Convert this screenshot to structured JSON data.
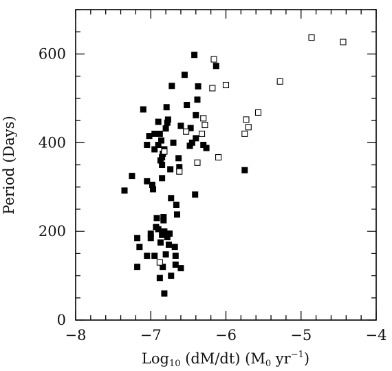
{
  "chart_data": {
    "type": "scatter",
    "title": "",
    "xlabel_main": "Log",
    "xlabel_sub": "10",
    "xlabel_rest": " (dM/dt) (M",
    "xlabel_sub2": "0",
    "xlabel_tail": " yr",
    "xlabel_sup": "−1",
    "xlabel_close": ")",
    "ylabel": "Period (Days)",
    "xlim": [
      -8,
      -4
    ],
    "ylim": [
      0,
      700
    ],
    "xticks": [
      -8,
      -7,
      -6,
      -5,
      -4
    ],
    "xtick_labels": [
      "−8",
      "−7",
      "−6",
      "−5",
      "−4"
    ],
    "yticks": [
      0,
      200,
      400,
      600
    ],
    "ytick_labels": [
      "0",
      "200",
      "400",
      "600"
    ],
    "x_minor_step": 0.2,
    "y_minor_step": 50,
    "grid": false,
    "series": [
      {
        "marker": "filled-square",
        "color": "#000000",
        "points": [
          [
            -7.35,
            292
          ],
          [
            -7.25,
            325
          ],
          [
            -7.18,
            185
          ],
          [
            -7.18,
            120
          ],
          [
            -7.15,
            165
          ],
          [
            -7.1,
            475
          ],
          [
            -7.05,
            145
          ],
          [
            -7.05,
            395
          ],
          [
            -7.05,
            313
          ],
          [
            -7.02,
            415
          ],
          [
            -7.0,
            185
          ],
          [
            -7.0,
            195
          ],
          [
            -6.98,
            305
          ],
          [
            -6.97,
            295
          ],
          [
            -6.95,
            385
          ],
          [
            -6.95,
            420
          ],
          [
            -6.95,
            145
          ],
          [
            -6.93,
            210
          ],
          [
            -6.92,
            230
          ],
          [
            -6.9,
            205
          ],
          [
            -6.9,
            447
          ],
          [
            -6.9,
            395
          ],
          [
            -6.88,
            420
          ],
          [
            -6.88,
            95
          ],
          [
            -6.87,
            360
          ],
          [
            -6.87,
            175
          ],
          [
            -6.86,
            405
          ],
          [
            -6.85,
            192
          ],
          [
            -6.85,
            350
          ],
          [
            -6.85,
            367
          ],
          [
            -6.85,
            320
          ],
          [
            -6.84,
            120
          ],
          [
            -6.84,
            375
          ],
          [
            -6.83,
            225
          ],
          [
            -6.83,
            232
          ],
          [
            -6.82,
            385
          ],
          [
            -6.82,
            200
          ],
          [
            -6.82,
            60
          ],
          [
            -6.8,
            148
          ],
          [
            -6.8,
            432
          ],
          [
            -6.79,
            480
          ],
          [
            -6.78,
            445
          ],
          [
            -6.78,
            187
          ],
          [
            -6.77,
            195
          ],
          [
            -6.77,
            452
          ],
          [
            -6.76,
            170
          ],
          [
            -6.75,
            195
          ],
          [
            -6.74,
            340
          ],
          [
            -6.73,
            100
          ],
          [
            -6.73,
            275
          ],
          [
            -6.72,
            528
          ],
          [
            -6.7,
            400
          ],
          [
            -6.68,
            165
          ],
          [
            -6.67,
            125
          ],
          [
            -6.67,
            145
          ],
          [
            -6.66,
            260
          ],
          [
            -6.65,
            238
          ],
          [
            -6.63,
            365
          ],
          [
            -6.62,
            345
          ],
          [
            -6.6,
            117
          ],
          [
            -6.6,
            438
          ],
          [
            -6.55,
            553
          ],
          [
            -6.52,
            485
          ],
          [
            -6.48,
            393
          ],
          [
            -6.47,
            433
          ],
          [
            -6.45,
            400
          ],
          [
            -6.42,
            598
          ],
          [
            -6.41,
            283
          ],
          [
            -6.4,
            410
          ],
          [
            -6.4,
            462
          ],
          [
            -6.38,
            497
          ],
          [
            -6.37,
            527
          ],
          [
            -6.3,
            395
          ],
          [
            -6.26,
            388
          ],
          [
            -6.13,
            573
          ],
          [
            -5.75,
            338
          ]
        ]
      },
      {
        "marker": "open-square",
        "color": "#000000",
        "points": [
          [
            -6.88,
            130
          ],
          [
            -6.82,
            380
          ],
          [
            -6.62,
            335
          ],
          [
            -6.53,
            425
          ],
          [
            -6.38,
            355
          ],
          [
            -6.32,
            420
          ],
          [
            -6.3,
            455
          ],
          [
            -6.28,
            440
          ],
          [
            -6.18,
            523
          ],
          [
            -6.16,
            588
          ],
          [
            -6.1,
            367
          ],
          [
            -6.0,
            530
          ],
          [
            -5.75,
            420
          ],
          [
            -5.73,
            452
          ],
          [
            -5.7,
            435
          ],
          [
            -5.57,
            468
          ],
          [
            -5.28,
            538
          ],
          [
            -4.86,
            637
          ],
          [
            -4.44,
            627
          ]
        ]
      }
    ]
  }
}
